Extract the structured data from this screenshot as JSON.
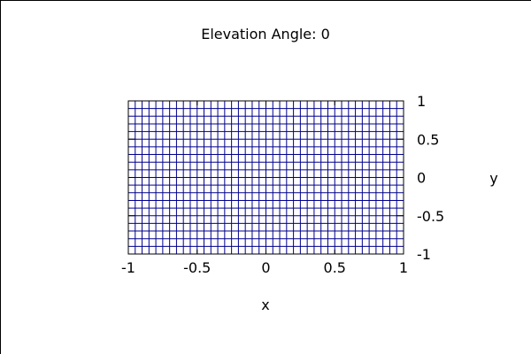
{
  "chart_data": {
    "type": "surface-3d",
    "title": "Elevation Angle: 0",
    "xlabel": "x",
    "ylabel": "y",
    "x_ticks": [
      "-1",
      "-0.5",
      "0",
      "0.5",
      "1"
    ],
    "y_ticks": [
      "1",
      "0.5",
      "0",
      "-0.5",
      "-1"
    ],
    "xlim": [
      -1,
      1
    ],
    "ylim": [
      -1,
      1
    ],
    "elevation_angle": 0,
    "mesh": {
      "nx": 41,
      "ny": 21,
      "line_color": "#00008b",
      "grid_color": "#000000"
    }
  }
}
